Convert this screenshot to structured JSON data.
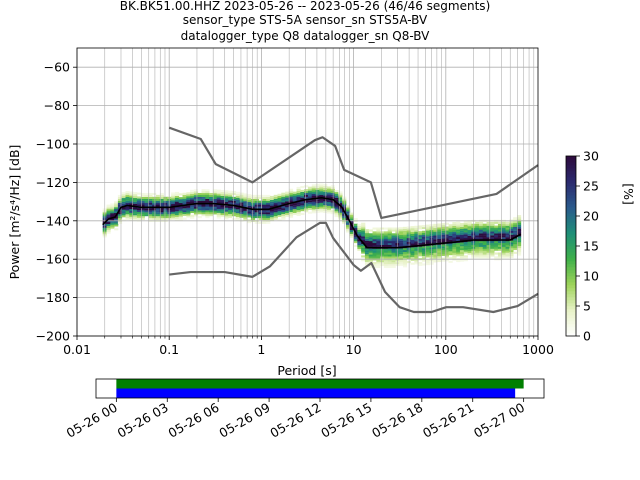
{
  "title_lines": [
    "BK.BK51.00.HHZ   2023-05-26 -- 2023-05-26  (46/46 segments)",
    "sensor_type STS-5A sensor_sn STS5A-BV",
    "datalogger_type Q8 datalogger_sn Q8-BV"
  ],
  "chart_data": [
    {
      "type": "heatmap",
      "title": "BK.BK51.00.HHZ   2023-05-26 -- 2023-05-26  (46/46 segments)",
      "xlabel": "Period [s]",
      "ylabel": "Power [m²/s⁴/Hz] [dB]",
      "xscale": "log",
      "xlim": [
        0.01,
        1000
      ],
      "ylim": [
        -200,
        -50
      ],
      "grid": true,
      "x_ticks": [
        "0.01",
        "0.1",
        "1",
        "10",
        "100",
        "1000"
      ],
      "y_ticks": [
        "−60",
        "−80",
        "−100",
        "−120",
        "−140",
        "−160",
        "−180",
        "−200"
      ],
      "y_tick_values": [
        -60,
        -80,
        -100,
        -120,
        -140,
        -160,
        -180,
        -200
      ],
      "colorbar": {
        "label": "[%]",
        "range": [
          0,
          30
        ],
        "ticks": [
          "0",
          "5",
          "10",
          "15",
          "20",
          "25",
          "30"
        ],
        "tick_values": [
          0,
          5,
          10,
          15,
          20,
          25,
          30
        ],
        "colors": [
          "#ffffff",
          "#e8f2c8",
          "#9ed35a",
          "#3fb04a",
          "#1f8f78",
          "#2a5a8c",
          "#2b2a6e",
          "#2d0a3c"
        ]
      },
      "series": [
        {
          "role": "mean",
          "color": "#000000",
          "x": [
            0.019,
            0.022,
            0.026,
            0.03,
            0.035,
            0.05,
            0.1,
            0.2,
            0.3,
            0.5,
            0.8,
            1.2,
            2,
            3,
            4.5,
            6,
            7.5,
            9,
            11,
            14,
            20,
            30,
            50,
            80,
            130,
            200,
            300,
            500,
            650
          ],
          "y": [
            -142,
            -139,
            -138,
            -133,
            -132,
            -133,
            -133,
            -131,
            -131,
            -132,
            -134,
            -134,
            -131,
            -129,
            -128,
            -129,
            -133,
            -140,
            -148,
            -154,
            -154,
            -154,
            -153,
            -152,
            -151,
            -150,
            -150,
            -150,
            -147
          ]
        },
        {
          "role": "noise-model-high",
          "color": "#666666",
          "x": [
            0.1,
            0.22,
            0.32,
            0.8,
            3.8,
            4.6,
            6.3,
            7.9,
            15.4,
            20,
            354.8,
            1000
          ],
          "y": [
            -91.5,
            -97.4,
            -110.5,
            -120,
            -98,
            -96.5,
            -101,
            -113.5,
            -120,
            -138.5,
            -126,
            -111
          ]
        },
        {
          "role": "noise-model-low",
          "color": "#666666",
          "x": [
            0.1,
            0.17,
            0.4,
            0.8,
            1.24,
            2.4,
            4.3,
            5,
            6,
            10,
            12,
            15.6,
            21.9,
            31.6,
            45,
            70,
            101,
            154,
            328,
            600,
            1000
          ],
          "y": [
            -168,
            -166.7,
            -166.7,
            -169.2,
            -163.7,
            -148.6,
            -141.1,
            -141.1,
            -149,
            -163,
            -166,
            -162,
            -177,
            -185,
            -187.5,
            -187.5,
            -185,
            -185,
            -187.5,
            -184.4,
            -178
          ]
        }
      ]
    },
    {
      "type": "timeline",
      "x_ticks": [
        "05-26 00",
        "05-26 03",
        "05-26 06",
        "05-26 09",
        "05-26 12",
        "05-26 15",
        "05-26 18",
        "05-26 21",
        "05-27 00"
      ],
      "x_tick_hours": [
        0,
        3,
        6,
        9,
        12,
        15,
        18,
        21,
        24
      ],
      "xlim_hours": [
        -1.2,
        25.2
      ],
      "bars": [
        {
          "color": "#008000",
          "start_hour": 0,
          "end_hour": 24
        },
        {
          "color": "#0000ff",
          "start_hour": 0,
          "end_hour": 23.5
        }
      ]
    }
  ]
}
